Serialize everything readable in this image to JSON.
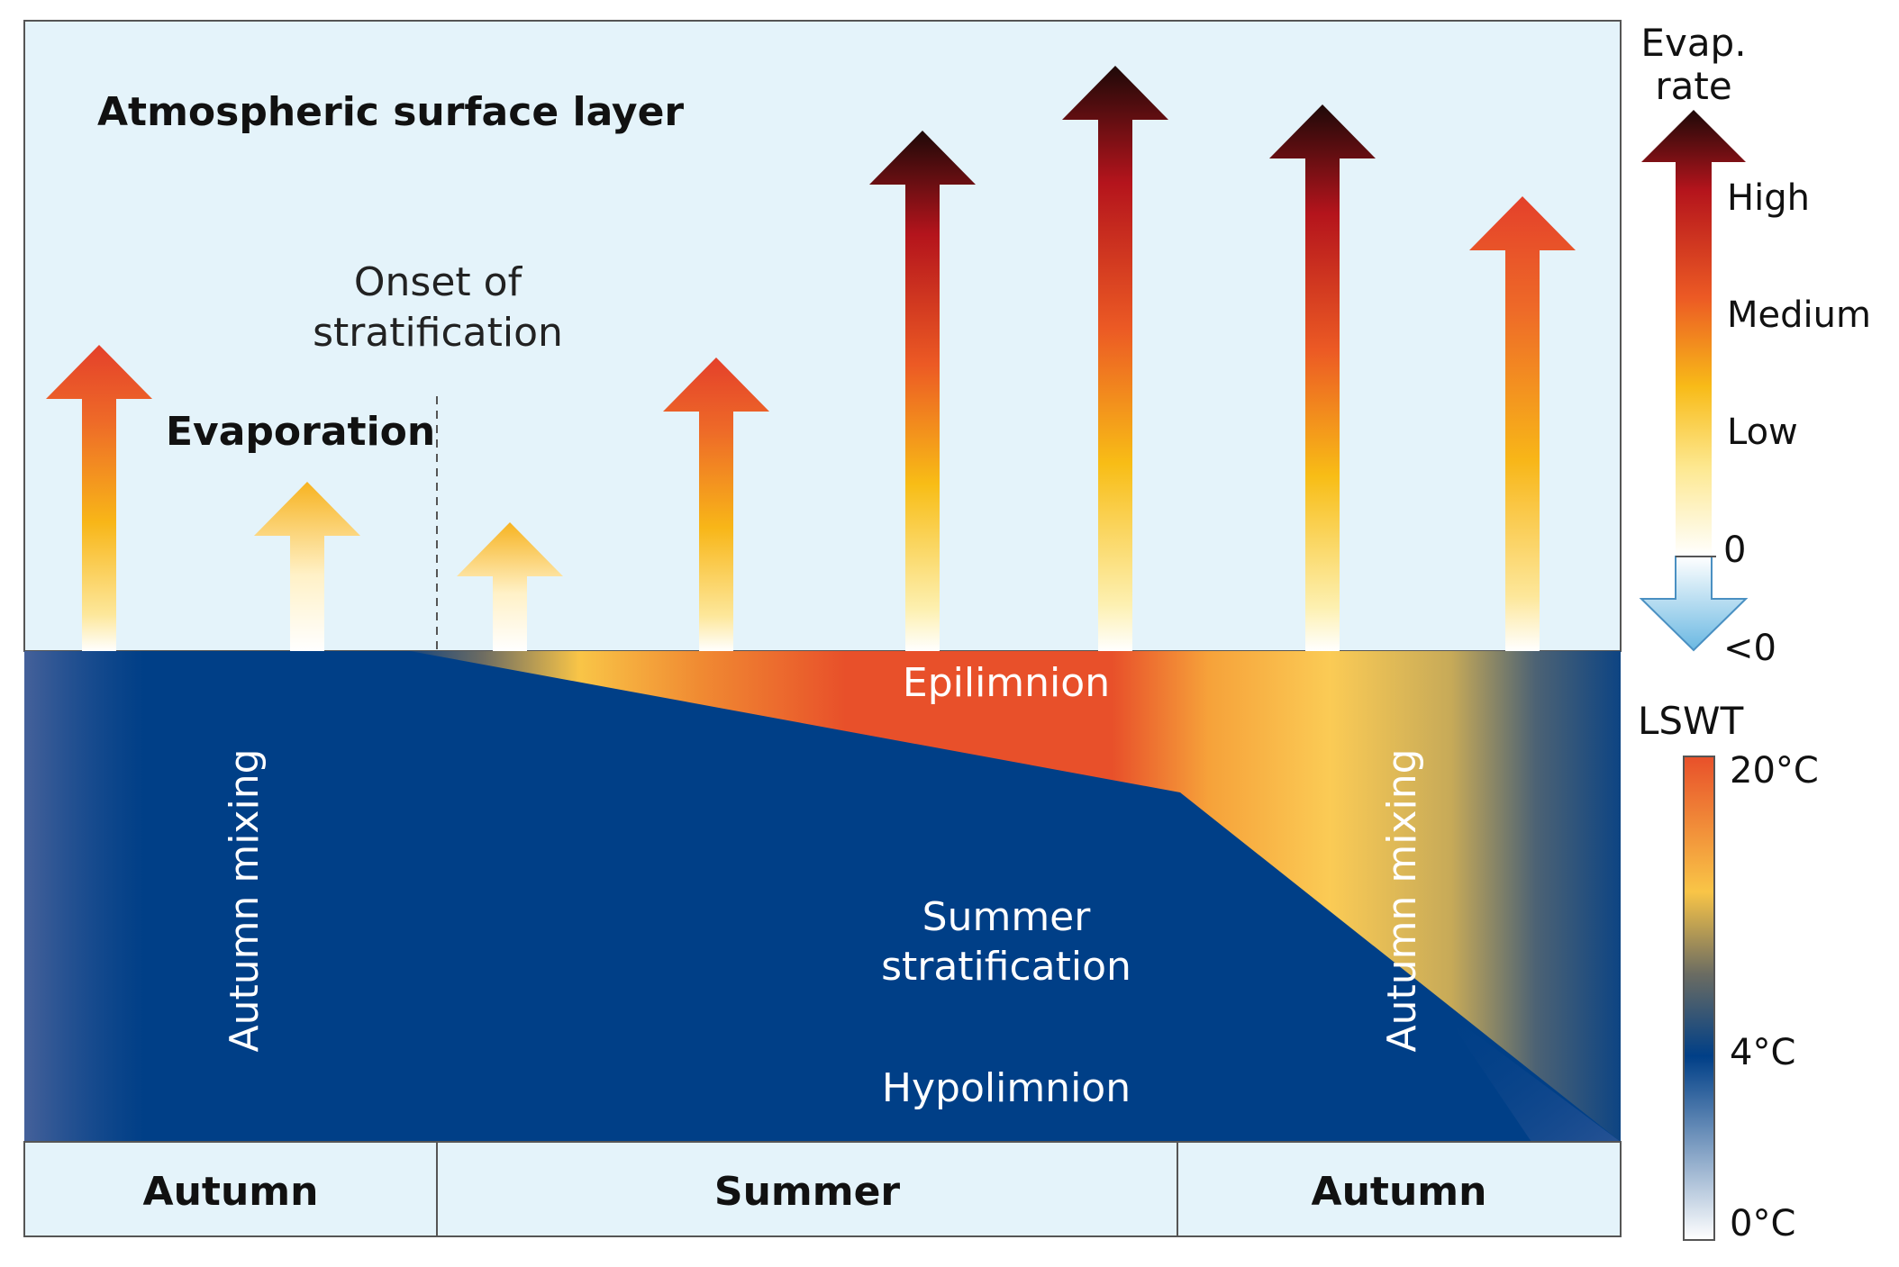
{
  "atmosphere": {
    "title": "Atmospheric surface layer",
    "evaporation_label": "Evaporation",
    "onset_label_line1": "Onset of",
    "onset_label_line2": "stratification"
  },
  "lake": {
    "epilimnion": "Epilimnion",
    "summer_strat_line1": "Summer",
    "summer_strat_line2": "stratification",
    "hypolimnion": "Hypolimnion",
    "left_mixing": "Autumn mixing",
    "right_mixing": "Autumn mixing"
  },
  "seasons": [
    "Autumn",
    "Summer",
    "Autumn"
  ],
  "evap_legend": {
    "title_line1": "Evap.",
    "title_line2": "rate",
    "labels": [
      "High",
      "Medium",
      "Low",
      "0",
      "<0"
    ]
  },
  "lswt_legend": {
    "title": "LSWT",
    "labels": [
      "20°C",
      "4°C",
      "0°C"
    ]
  },
  "evaporation_rates": [
    "medium",
    "low",
    "low",
    "medium",
    "high",
    "high",
    "high",
    "medium"
  ],
  "colors": {
    "sky": "#e4f3fa",
    "lake_blue": "#003f87",
    "warm_red": "#e8502a",
    "warm_yellow": "#f9c547",
    "dark": "#220c06",
    "cold_blue": "#6ab8e2"
  }
}
